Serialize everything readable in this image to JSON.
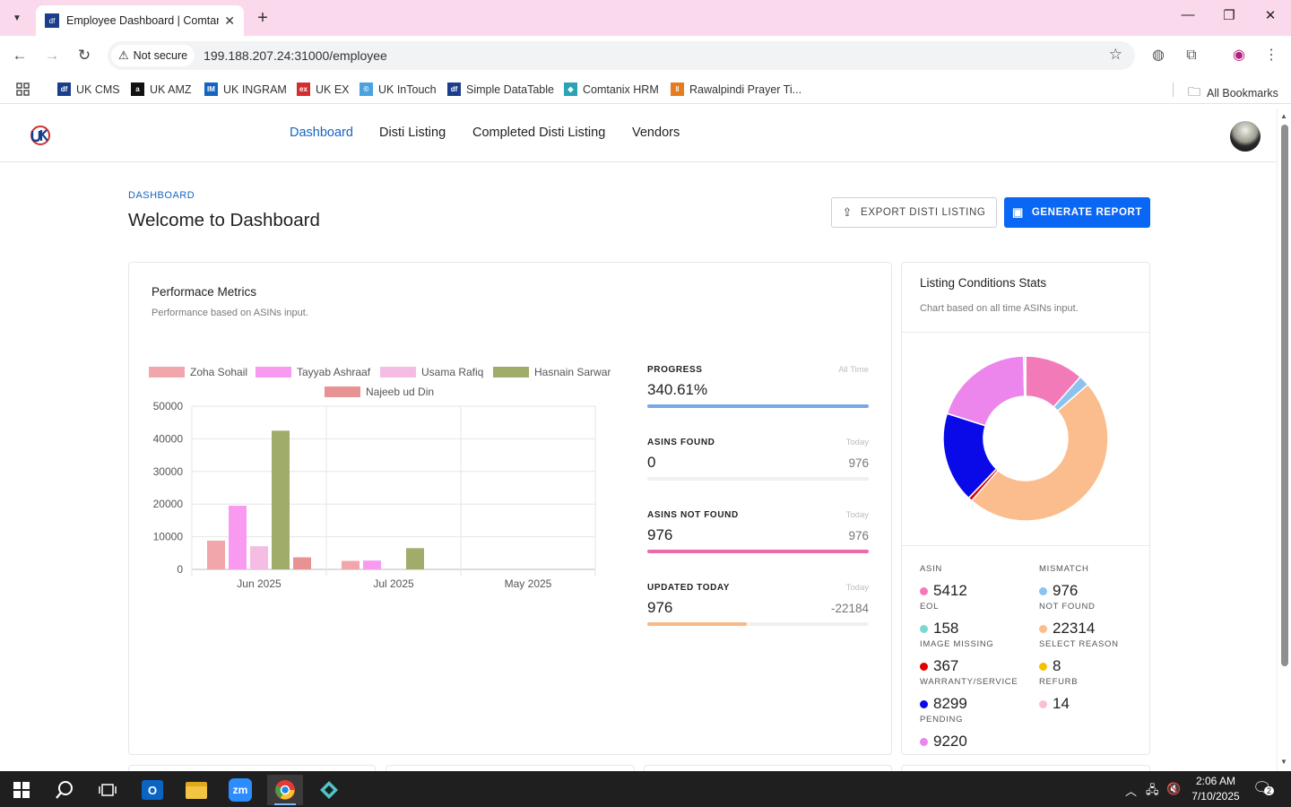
{
  "browser": {
    "tab_title": "Employee Dashboard | Comtanix",
    "tab_favicon": "df",
    "security_label": "Not secure",
    "url": "199.188.207.24:31000/employee",
    "bookmarks": [
      {
        "label": "UK CMS",
        "icon": "df",
        "color": "#1a3e8c"
      },
      {
        "label": "UK AMZ",
        "icon": "a",
        "color": "#111111"
      },
      {
        "label": "UK INGRAM",
        "icon": "IM",
        "color": "#1565c0"
      },
      {
        "label": "UK EX",
        "icon": "ex",
        "color": "#d32f2f"
      },
      {
        "label": "UK InTouch",
        "icon": "©",
        "color": "#4aa3df"
      },
      {
        "label": "Simple DataTable",
        "icon": "df",
        "color": "#1a3e8c"
      },
      {
        "label": "Comtanix HRM",
        "icon": "◆",
        "color": "#2aa3b5"
      },
      {
        "label": "Rawalpindi Prayer Ti...",
        "icon": "‖",
        "color": "#e57c1f"
      }
    ],
    "all_bookmarks": "All Bookmarks"
  },
  "app": {
    "nav": [
      {
        "label": "Dashboard",
        "active": true
      },
      {
        "label": "Disti Listing",
        "active": false
      },
      {
        "label": "Completed Disti Listing",
        "active": false
      },
      {
        "label": "Vendors",
        "active": false
      }
    ],
    "breadcrumb": "DASHBOARD",
    "title": "Welcome to Dashboard",
    "export_button": "EXPORT DISTI LISTING",
    "generate_button": "GENERATE REPORT"
  },
  "performance": {
    "title": "Performace Metrics",
    "subtitle": "Performance based on ASINs input.",
    "metrics": [
      {
        "label": "PROGRESS",
        "period": "All Time",
        "value": "340.61%",
        "sub": "",
        "fill": 1.0,
        "color": "#7ea6e6"
      },
      {
        "label": "ASINS FOUND",
        "period": "Today",
        "value": "0",
        "sub": "976",
        "fill": 0.0,
        "color": "#8bc34a"
      },
      {
        "label": "ASINS NOT FOUND",
        "period": "Today",
        "value": "976",
        "sub": "976",
        "fill": 1.0,
        "color": "#ec6aa6"
      },
      {
        "label": "UPDATED TODAY",
        "period": "Today",
        "value": "976",
        "sub": "-22184",
        "fill": 0.45,
        "color": "#f5b98b"
      }
    ]
  },
  "chart_data": {
    "type": "bar",
    "categories": [
      "Jun 2025",
      "Jul 2025",
      "May 2025"
    ],
    "series": [
      {
        "name": "Zoha Sohail",
        "color": "#f0a6ab",
        "values": [
          8800,
          2600,
          0
        ]
      },
      {
        "name": "Tayyab Ashraaf",
        "color": "#f89af0",
        "values": [
          19500,
          2700,
          0
        ]
      },
      {
        "name": "Usama Rafiq",
        "color": "#f5bde3",
        "values": [
          7100,
          0,
          0
        ]
      },
      {
        "name": "Hasnain Sarwar",
        "color": "#a0ad6a",
        "values": [
          42500,
          6500,
          0
        ]
      },
      {
        "name": "Najeeb ud Din",
        "color": "#e89393",
        "values": [
          3700,
          0,
          0
        ]
      }
    ],
    "yticks": [
      "50000",
      "40000",
      "30000",
      "20000",
      "10000",
      "0"
    ],
    "ylim": [
      0,
      50000
    ],
    "legend": "top",
    "grid": true
  },
  "listing": {
    "title": "Listing Conditions Stats",
    "subtitle": "Chart based on all time ASINs input.",
    "donut": [
      {
        "name": "ASIN",
        "value": 5412,
        "color": "#f37ab8"
      },
      {
        "name": "MISMATCH",
        "value": 976,
        "color": "#8cc3ee"
      },
      {
        "name": "NOT FOUND",
        "value": 22314,
        "color": "#fbbd8d"
      },
      {
        "name": "IMAGE MISSING",
        "value": 367,
        "color": "#e00000"
      },
      {
        "name": "WARRANTY/SERVICE",
        "value": 8299,
        "color": "#0a0ae8"
      },
      {
        "name": "PENDING",
        "value": 9220,
        "color": "#ec86ec"
      },
      {
        "name": "EOL",
        "value": 158,
        "color": "#7ad9d5"
      },
      {
        "name": "SELECT REASON",
        "value": 8,
        "color": "#f2c200"
      },
      {
        "name": "REFURB",
        "value": 14,
        "color": "#f7c1d2"
      }
    ],
    "stats": [
      {
        "label": "ASIN",
        "value": "5412",
        "color": "#f37ab8"
      },
      {
        "label": "MISMATCH",
        "value": "976",
        "color": "#8cc3ee"
      },
      {
        "label": "EOL",
        "value": "158",
        "color": "#7ad9d5"
      },
      {
        "label": "NOT FOUND",
        "value": "22314",
        "color": "#fbbd8d"
      },
      {
        "label": "IMAGE MISSING",
        "value": "367",
        "color": "#e00000"
      },
      {
        "label": "SELECT REASON",
        "value": "8",
        "color": "#f2c200"
      },
      {
        "label": "WARRANTY/SERVICE",
        "value": "8299",
        "color": "#0a0ae8"
      },
      {
        "label": "REFURB",
        "value": "14",
        "color": "#f7c1d2"
      },
      {
        "label": "PENDING",
        "value": "9220",
        "color": "#ec86ec"
      }
    ]
  },
  "taskbar": {
    "time": "2:06 AM",
    "date": "7/10/2025",
    "notifications": "2"
  }
}
